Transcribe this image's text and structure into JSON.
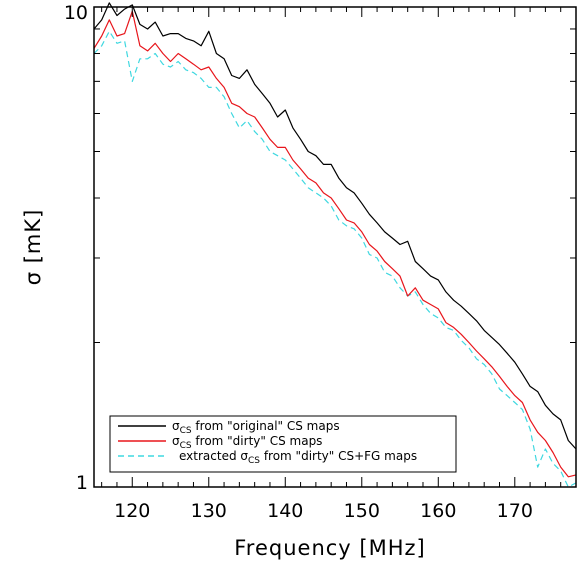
{
  "chart_data": {
    "type": "line",
    "title": "",
    "xlabel": "Frequency [MHz]",
    "ylabel": "σ [mK]",
    "xlim": [
      115,
      178
    ],
    "ylim": [
      1,
      10
    ],
    "yscale": "log",
    "xticks": [
      "120",
      "130",
      "140",
      "150",
      "160",
      "170"
    ],
    "yticks": [
      "1",
      "10"
    ],
    "grid": false,
    "legend_position": "bottom-left",
    "series": [
      {
        "name_parts": {
          "symbol": "σ",
          "sub": "CS",
          "rest": " from \"original\" CS maps"
        },
        "color": "#000000",
        "dash": "solid",
        "x": [
          115,
          116,
          117,
          118,
          119,
          120,
          121,
          122,
          123,
          124,
          125,
          126,
          127,
          128,
          129,
          130,
          131,
          132,
          133,
          134,
          135,
          136,
          137,
          138,
          139,
          140,
          141,
          142,
          143,
          144,
          145,
          146,
          147,
          148,
          149,
          150,
          151,
          152,
          153,
          154,
          155,
          156,
          157,
          158,
          159,
          160,
          161,
          162,
          163,
          164,
          165,
          166,
          167,
          168,
          169,
          170,
          171,
          172,
          173,
          174,
          175,
          176,
          177,
          178
        ],
        "values": [
          9.0,
          9.4,
          10.2,
          9.6,
          9.9,
          10.1,
          9.2,
          9.0,
          9.3,
          8.7,
          8.8,
          8.8,
          8.6,
          8.5,
          8.3,
          8.9,
          8.0,
          7.8,
          7.2,
          7.1,
          7.4,
          6.9,
          6.6,
          6.3,
          5.9,
          6.1,
          5.6,
          5.3,
          5.0,
          4.9,
          4.7,
          4.7,
          4.4,
          4.2,
          4.1,
          3.9,
          3.7,
          3.55,
          3.4,
          3.3,
          3.2,
          3.25,
          2.95,
          2.85,
          2.75,
          2.7,
          2.55,
          2.45,
          2.38,
          2.3,
          2.22,
          2.12,
          2.05,
          1.98,
          1.9,
          1.82,
          1.72,
          1.62,
          1.58,
          1.48,
          1.42,
          1.38,
          1.25,
          1.2
        ]
      },
      {
        "name_parts": {
          "symbol": "σ",
          "sub": "CS",
          "rest": " from \"dirty\" CS maps"
        },
        "color": "#e8161c",
        "dash": "solid",
        "x": [
          115,
          116,
          117,
          118,
          119,
          120,
          121,
          122,
          123,
          124,
          125,
          126,
          127,
          128,
          129,
          130,
          131,
          132,
          133,
          134,
          135,
          136,
          137,
          138,
          139,
          140,
          141,
          142,
          143,
          144,
          145,
          146,
          147,
          148,
          149,
          150,
          151,
          152,
          153,
          154,
          155,
          156,
          157,
          158,
          159,
          160,
          161,
          162,
          163,
          164,
          165,
          166,
          167,
          168,
          169,
          170,
          171,
          172,
          173,
          174,
          175,
          176,
          177,
          178
        ],
        "values": [
          8.2,
          8.7,
          9.4,
          8.7,
          8.8,
          9.8,
          8.3,
          8.1,
          8.4,
          8.0,
          7.7,
          8.0,
          7.8,
          7.6,
          7.4,
          7.5,
          7.1,
          6.8,
          6.3,
          6.2,
          6.0,
          5.9,
          5.6,
          5.3,
          5.1,
          5.1,
          4.8,
          4.6,
          4.4,
          4.3,
          4.1,
          4.0,
          3.8,
          3.6,
          3.55,
          3.4,
          3.2,
          3.1,
          2.95,
          2.85,
          2.75,
          2.5,
          2.6,
          2.45,
          2.4,
          2.35,
          2.2,
          2.15,
          2.08,
          2.0,
          1.92,
          1.85,
          1.78,
          1.7,
          1.62,
          1.55,
          1.5,
          1.38,
          1.3,
          1.25,
          1.18,
          1.1,
          1.05,
          1.06
        ]
      },
      {
        "name_parts": {
          "prefix": "extracted ",
          "symbol": "σ",
          "sub": "CS",
          "rest": " from \"dirty\" CS+FG maps"
        },
        "color": "#3fd8e0",
        "dash": "dashed",
        "x": [
          115,
          116,
          117,
          118,
          119,
          120,
          121,
          122,
          123,
          124,
          125,
          126,
          127,
          128,
          129,
          130,
          131,
          132,
          133,
          134,
          135,
          136,
          137,
          138,
          139,
          140,
          141,
          142,
          143,
          144,
          145,
          146,
          147,
          148,
          149,
          150,
          151,
          152,
          153,
          154,
          155,
          156,
          157,
          158,
          159,
          160,
          161,
          162,
          163,
          164,
          165,
          166,
          167,
          168,
          169,
          170,
          171,
          172,
          173,
          174,
          175,
          176,
          177,
          178
        ],
        "values": [
          8.0,
          8.3,
          8.9,
          8.4,
          8.5,
          7.0,
          7.8,
          7.8,
          8.0,
          7.6,
          7.5,
          7.7,
          7.4,
          7.3,
          7.1,
          6.8,
          6.8,
          6.5,
          6.0,
          5.6,
          5.8,
          5.5,
          5.3,
          5.0,
          4.9,
          4.8,
          4.6,
          4.4,
          4.2,
          4.1,
          4.0,
          3.85,
          3.6,
          3.5,
          3.45,
          3.3,
          3.05,
          3.0,
          2.8,
          2.75,
          2.6,
          2.5,
          2.55,
          2.4,
          2.3,
          2.25,
          2.15,
          2.12,
          2.02,
          1.95,
          1.85,
          1.8,
          1.72,
          1.6,
          1.55,
          1.5,
          1.45,
          1.32,
          1.1,
          1.2,
          1.12,
          1.08,
          1.0,
          1.02
        ]
      }
    ]
  }
}
